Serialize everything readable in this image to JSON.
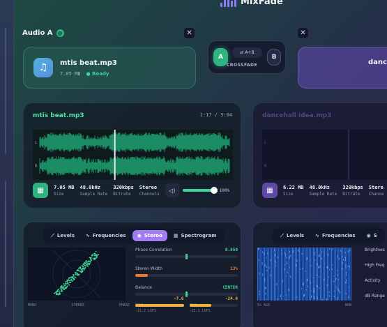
{
  "brand": {
    "name": "MixFade"
  },
  "deck_a": {
    "label": "Audio A",
    "badge": "@",
    "file_name": "mtis beat.mp3",
    "file_size": "7.05 MB",
    "status": "Ready",
    "wave_title": "mtis beat.mp3",
    "time": "1:17 / 3:04",
    "stats": [
      {
        "value": "7.05 MB",
        "label": "Size"
      },
      {
        "value": "48.0kHz",
        "label": "Sample Rate"
      },
      {
        "value": "320kbps",
        "label": "Bitrate"
      },
      {
        "value": "Stereo",
        "label": "Channels"
      }
    ],
    "volume_pct": "100%",
    "volume_level": 1.0,
    "playhead_fraction": 0.41,
    "channel_labels": [
      "L",
      "R"
    ]
  },
  "deck_b": {
    "file_name": "dance",
    "wave_title": "dancehall idea.mp3",
    "stats": [
      {
        "value": "6.22 MB",
        "label": "Size"
      },
      {
        "value": "48.0kHz",
        "label": "Sample Rate"
      },
      {
        "value": "320kbps",
        "label": "Bitrate"
      },
      {
        "value": "Stere",
        "label": "Channe"
      }
    ],
    "channel_labels": [
      "L",
      "R"
    ]
  },
  "crossfade": {
    "a": "A",
    "b": "B",
    "swap": "A+B",
    "swap_icon": "⇄",
    "label": "CROSSFADE"
  },
  "close_icon": "✕",
  "analyzer_a": {
    "tabs": [
      {
        "label": "Levels",
        "icon": "⟋"
      },
      {
        "label": "Frequencies",
        "icon": "∿"
      },
      {
        "label": "Stereo",
        "icon": "◉"
      },
      {
        "label": "Spectrogram",
        "icon": "▦"
      }
    ],
    "active_tab": "Stereo",
    "scope_labels": [
      "MONO",
      "STEREO",
      "PHASE"
    ],
    "phase_correlation": {
      "label": "Phase Correlation",
      "value": "0.950"
    },
    "stereo_width": {
      "label": "Stereo Width",
      "value": "13%"
    },
    "balance": {
      "label": "Balance",
      "value": "CENTER"
    },
    "mid": {
      "label": "Mid",
      "value": "-7.6",
      "sub": "-11.2 LUFS"
    },
    "side": {
      "label": "Side",
      "value": "-24.6",
      "sub": "-25.1 LUFS"
    }
  },
  "analyzer_b": {
    "tabs": [
      {
        "label": "Levels",
        "icon": "⟋"
      },
      {
        "label": "Frequencies",
        "icon": "∿"
      },
      {
        "label": "S",
        "icon": "◉"
      }
    ],
    "side_labels": [
      "Brightnes",
      "High Freq",
      "Activity",
      "dB Range"
    ],
    "time_labels": [
      "5s AGO",
      "NOW"
    ]
  }
}
